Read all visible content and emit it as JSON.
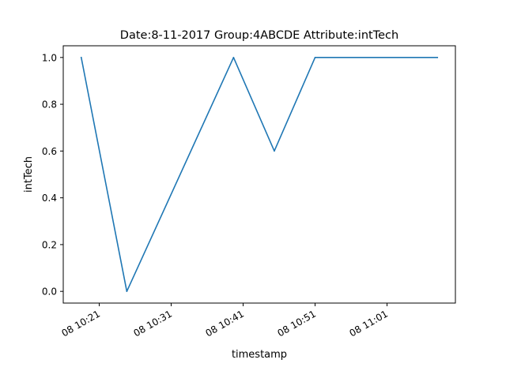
{
  "chart_data": {
    "type": "line",
    "title": "Date:8-11-2017  Group:4ABCDE Attribute:intTech",
    "xlabel": "timestamp",
    "ylabel": "intTech",
    "x_tick_labels": [
      "08 10:21",
      "08 10:31",
      "08 10:41",
      "08 10:51",
      "08 11:01"
    ],
    "x_tick_values": [
      "2017-08-11 10:21",
      "2017-08-11 10:31",
      "2017-08-11 10:41",
      "2017-08-11 10:51",
      "2017-08-11 11:01"
    ],
    "x": [
      "2017-08-11 10:18:30",
      "2017-08-11 10:24:50",
      "2017-08-11 10:39:40",
      "2017-08-11 10:45:20",
      "2017-08-11 10:51:00",
      "2017-08-11 11:08:00"
    ],
    "xlim": [
      "2017-08-11 10:16:00",
      "2017-08-11 11:10:30"
    ],
    "series": [
      {
        "values": [
          1.0,
          0.0,
          1.0,
          0.6,
          1.0,
          1.0
        ],
        "color": "#1f77b4"
      }
    ],
    "y_tick_labels": [
      "0.0",
      "0.2",
      "0.4",
      "0.6",
      "0.8",
      "1.0"
    ],
    "y_tick_values": [
      0.0,
      0.2,
      0.4,
      0.6,
      0.8,
      1.0
    ],
    "ylim": [
      -0.05,
      1.05
    ],
    "grid": false,
    "legend": "none"
  }
}
